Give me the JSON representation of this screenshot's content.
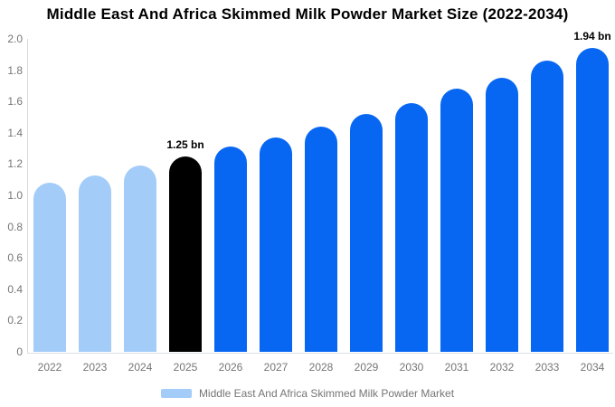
{
  "title": "Middle East And Africa Skimmed Milk Powder Market Size (2022-2034)",
  "legend": {
    "label": "Middle East And Africa Skimmed Milk Powder Market",
    "swatch_color": "#a3cdf8"
  },
  "colors": {
    "historical_bar": "#a3cdf8",
    "base_year_bar": "#000000",
    "forecast_bar": "#0767f2",
    "axis_text": "#757575",
    "background": "#ffffff"
  },
  "chart_data": {
    "type": "bar",
    "title": "Middle East And Africa Skimmed Milk Powder Market Size (2022-2034)",
    "xlabel": "",
    "ylabel": "",
    "categories": [
      "2022",
      "2023",
      "2024",
      "2025",
      "2026",
      "2027",
      "2028",
      "2029",
      "2030",
      "2031",
      "2032",
      "2033",
      "2034"
    ],
    "values": [
      1.08,
      1.13,
      1.19,
      1.25,
      1.31,
      1.37,
      1.44,
      1.52,
      1.59,
      1.68,
      1.75,
      1.86,
      1.94
    ],
    "unit": "bn",
    "bar_colors": [
      "#a3cdf8",
      "#a3cdf8",
      "#a3cdf8",
      "#000000",
      "#0767f2",
      "#0767f2",
      "#0767f2",
      "#0767f2",
      "#0767f2",
      "#0767f2",
      "#0767f2",
      "#0767f2",
      "#0767f2"
    ],
    "ylim": [
      0,
      2.0
    ],
    "yticks": [
      "0",
      "0.2",
      "0.4",
      "0.6",
      "0.8",
      "1.0",
      "1.2",
      "1.4",
      "1.6",
      "1.8",
      "2.0"
    ],
    "grid": false,
    "legend_position": "bottom",
    "legend_entries": [
      "Middle East And Africa Skimmed Milk Powder Market"
    ],
    "annotations": [
      {
        "category": "2025",
        "text": "1.25 bn"
      },
      {
        "category": "2034",
        "text": "1.94 bn"
      }
    ]
  }
}
